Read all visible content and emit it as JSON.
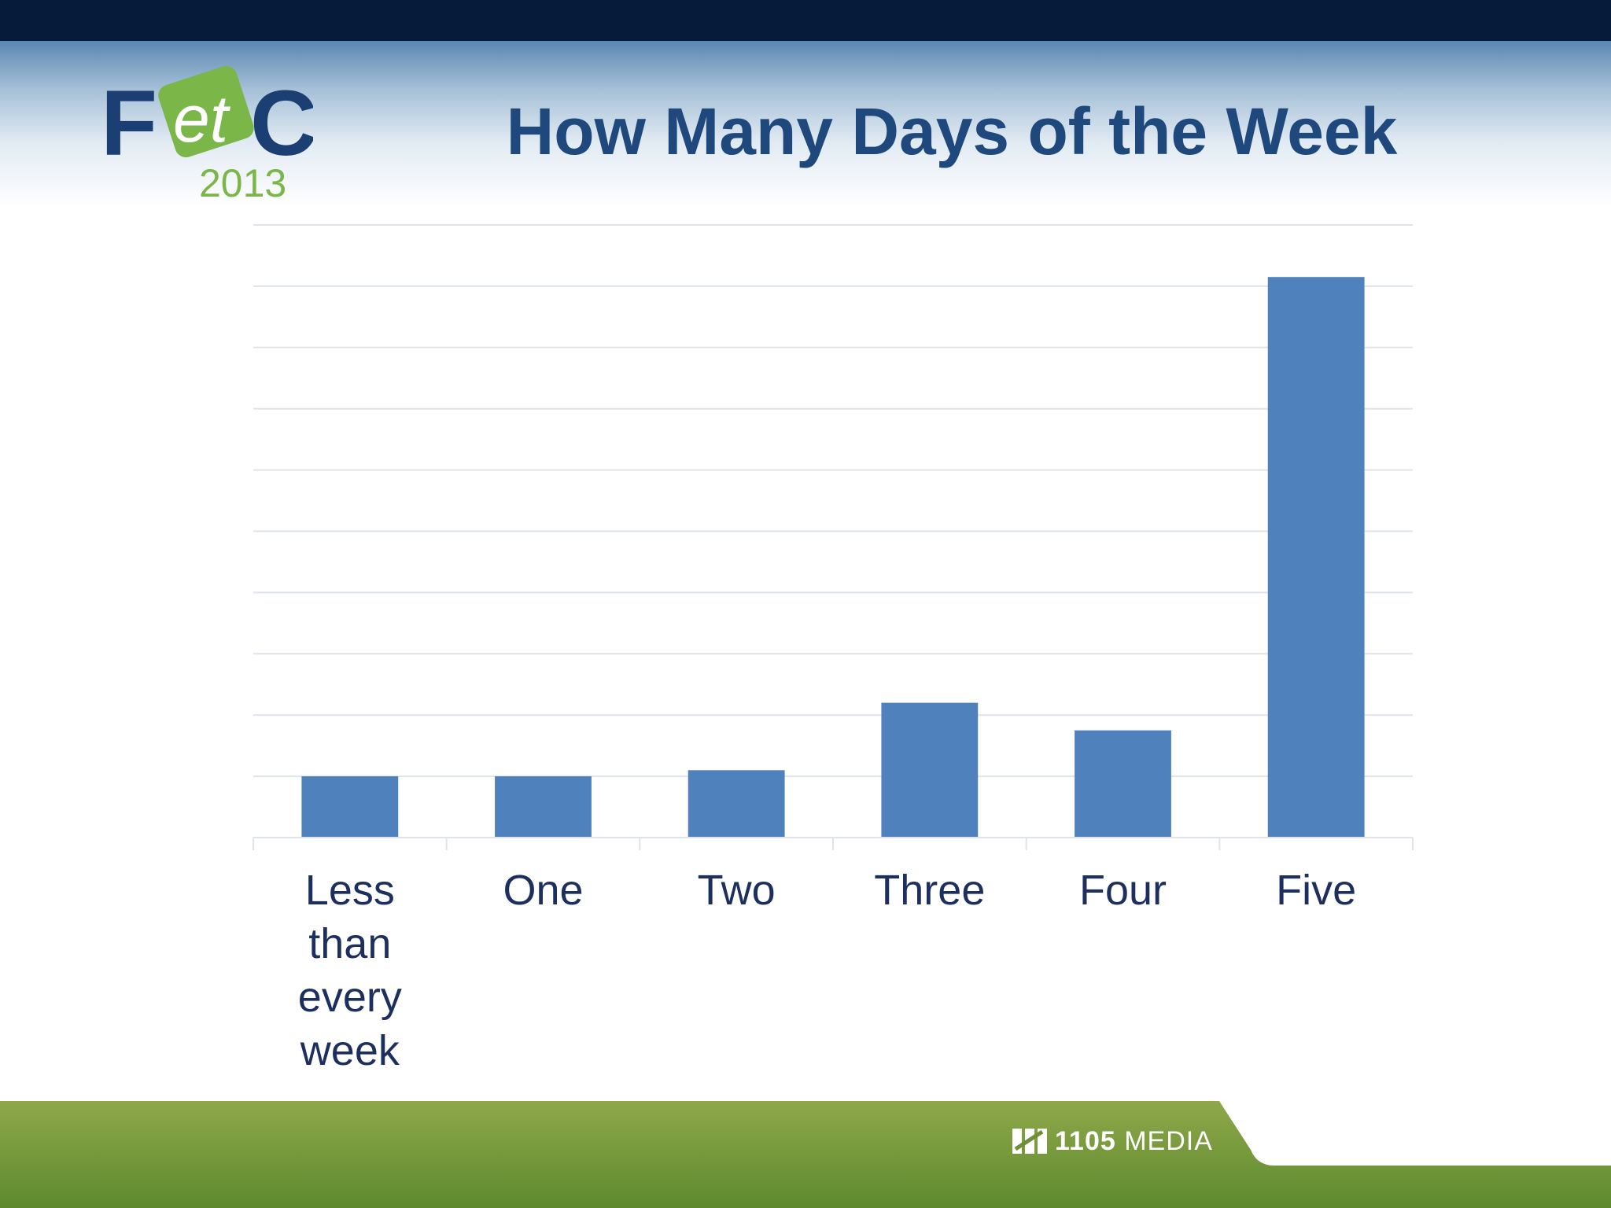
{
  "slide": {
    "title": "How Many Days of the Week",
    "logo": {
      "text_letters": "FetC",
      "year": "2013",
      "icon": "fetc-2013-logo"
    },
    "footer": {
      "publisher_number": "1105",
      "publisher_name": "MEDIA",
      "icon": "1105-media-logo"
    }
  },
  "colors": {
    "top_bar": "#061a3a",
    "title": "#1f497d",
    "bar": "#4f81bd",
    "gridline": "#dfe4ea",
    "axis_label": "#1c2f5e",
    "footer_green_dark": "#5e8a2e",
    "footer_green_light": "#8ea84a",
    "logo_navy": "#1b3f73",
    "logo_green": "#7ab648"
  },
  "chart_data": {
    "type": "bar",
    "title": "How Many Days of the Week",
    "categories": [
      "Less than every week",
      "One",
      "Two",
      "Three",
      "Four",
      "Five"
    ],
    "category_label_lines": [
      [
        "Less",
        "than",
        "every",
        "week"
      ],
      [
        "One"
      ],
      [
        "Two"
      ],
      [
        "Three"
      ],
      [
        "Four"
      ],
      [
        "Five"
      ]
    ],
    "values": [
      1,
      1,
      1.1,
      2.2,
      1.75,
      9.15
    ],
    "ylim": [
      0,
      10
    ],
    "y_gridlines": 10,
    "y_tick_labels_shown": false,
    "grid": true,
    "legend": "none",
    "xlabel": "",
    "ylabel": ""
  }
}
